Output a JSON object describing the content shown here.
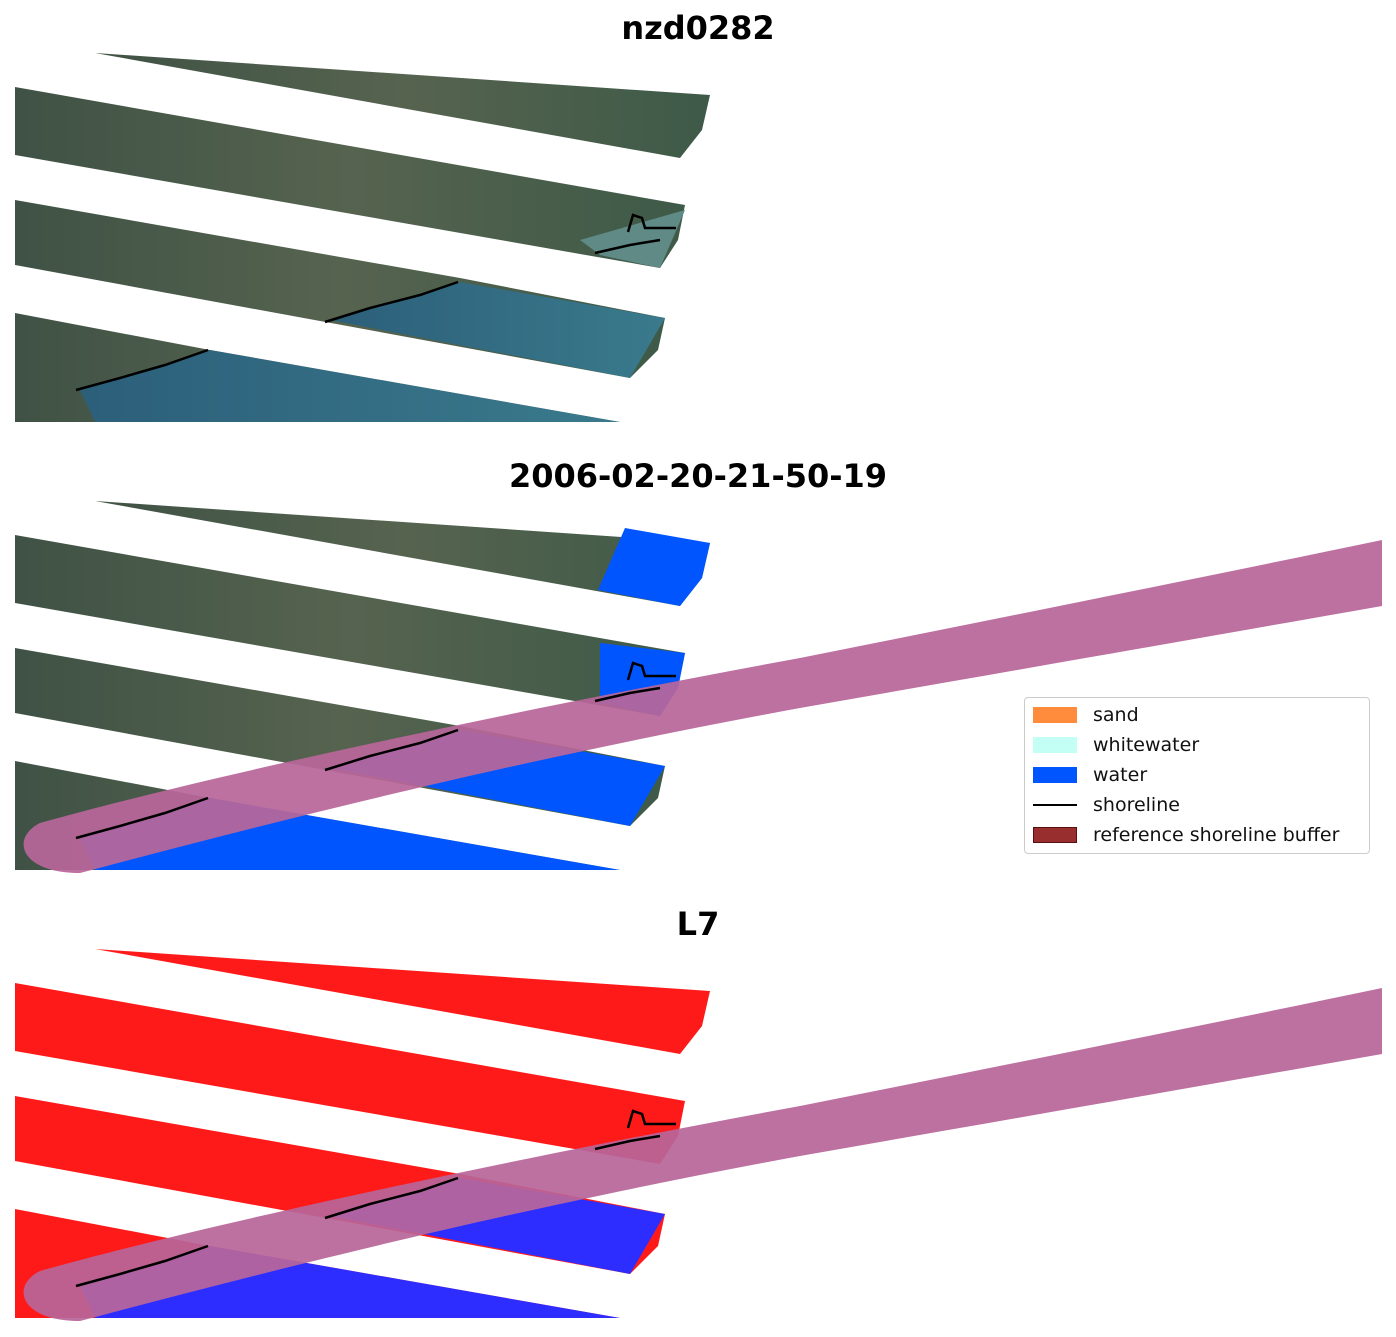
{
  "figure": {
    "panels": [
      {
        "title": "nzd0282",
        "view": "rgb"
      },
      {
        "title": "2006-02-20-21-50-19",
        "view": "classified"
      },
      {
        "title": "L7",
        "view": "mndwi"
      }
    ]
  },
  "legend": {
    "items": [
      {
        "label": "sand",
        "color": "#ff8c3c",
        "kind": "patch"
      },
      {
        "label": "whitewater",
        "color": "#c4fff5",
        "kind": "patch"
      },
      {
        "label": "water",
        "color": "#0055ff",
        "kind": "patch"
      },
      {
        "label": "shoreline",
        "color": "#000000",
        "kind": "line"
      },
      {
        "label": "reference shoreline buffer",
        "color": "#992e2e",
        "kind": "patch"
      }
    ]
  },
  "colors": {
    "land": "#4a5a4a",
    "land_dark": "#3c4c3e",
    "water_rgb": "#2f6a85",
    "water_class": "#0055ff",
    "buffer": "#b8669a",
    "index_land": "#ff1a1a",
    "index_water": "#2d2dff"
  }
}
